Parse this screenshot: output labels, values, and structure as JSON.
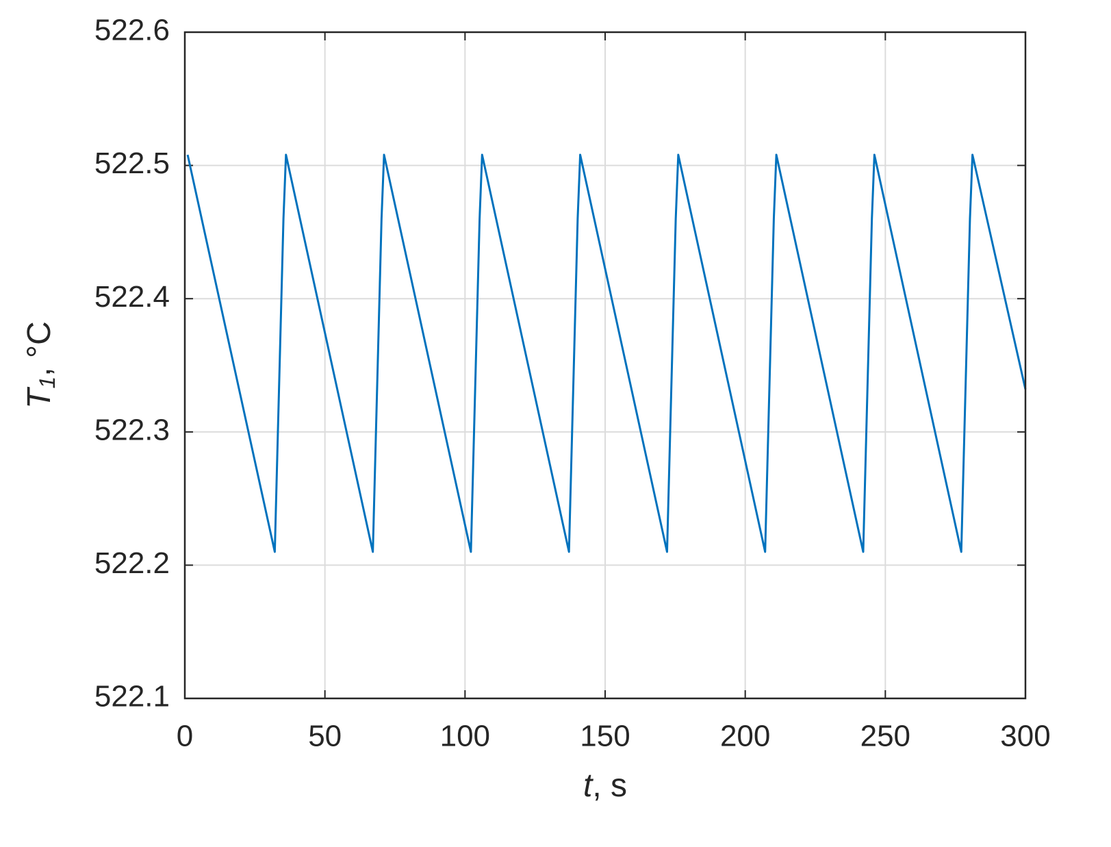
{
  "chart_data": {
    "type": "line",
    "ylabel": {
      "symbol": "T",
      "subscript": "1",
      "unit": ", °C"
    },
    "xlabel": {
      "symbol": "t",
      "unit": ", s"
    },
    "x": [
      1,
      32.1,
      35.2,
      36.1,
      67.1,
      70.2,
      71.1,
      102.1,
      105.2,
      106.1,
      137.1,
      140.2,
      141.1,
      172.1,
      175.2,
      176.1,
      207.1,
      210.2,
      211.1,
      242.1,
      245.2,
      246.1,
      277.1,
      280.2,
      281.1,
      300
    ],
    "series": [
      {
        "color": "#0072bd",
        "values": [
          522.508,
          522.21,
          522.46,
          522.508,
          522.21,
          522.46,
          522.508,
          522.21,
          522.46,
          522.508,
          522.21,
          522.46,
          522.508,
          522.21,
          522.46,
          522.508,
          522.21,
          522.46,
          522.508,
          522.21,
          522.46,
          522.508,
          522.21,
          522.46,
          522.508,
          522.332
        ]
      }
    ],
    "xlim": [
      0,
      300
    ],
    "xticks": [
      0,
      50,
      100,
      150,
      200,
      250,
      300
    ],
    "ylim": [
      522.1,
      522.6
    ],
    "yticks": [
      522.1,
      522.2,
      522.3,
      522.4,
      522.5,
      522.6
    ],
    "grid": true
  }
}
